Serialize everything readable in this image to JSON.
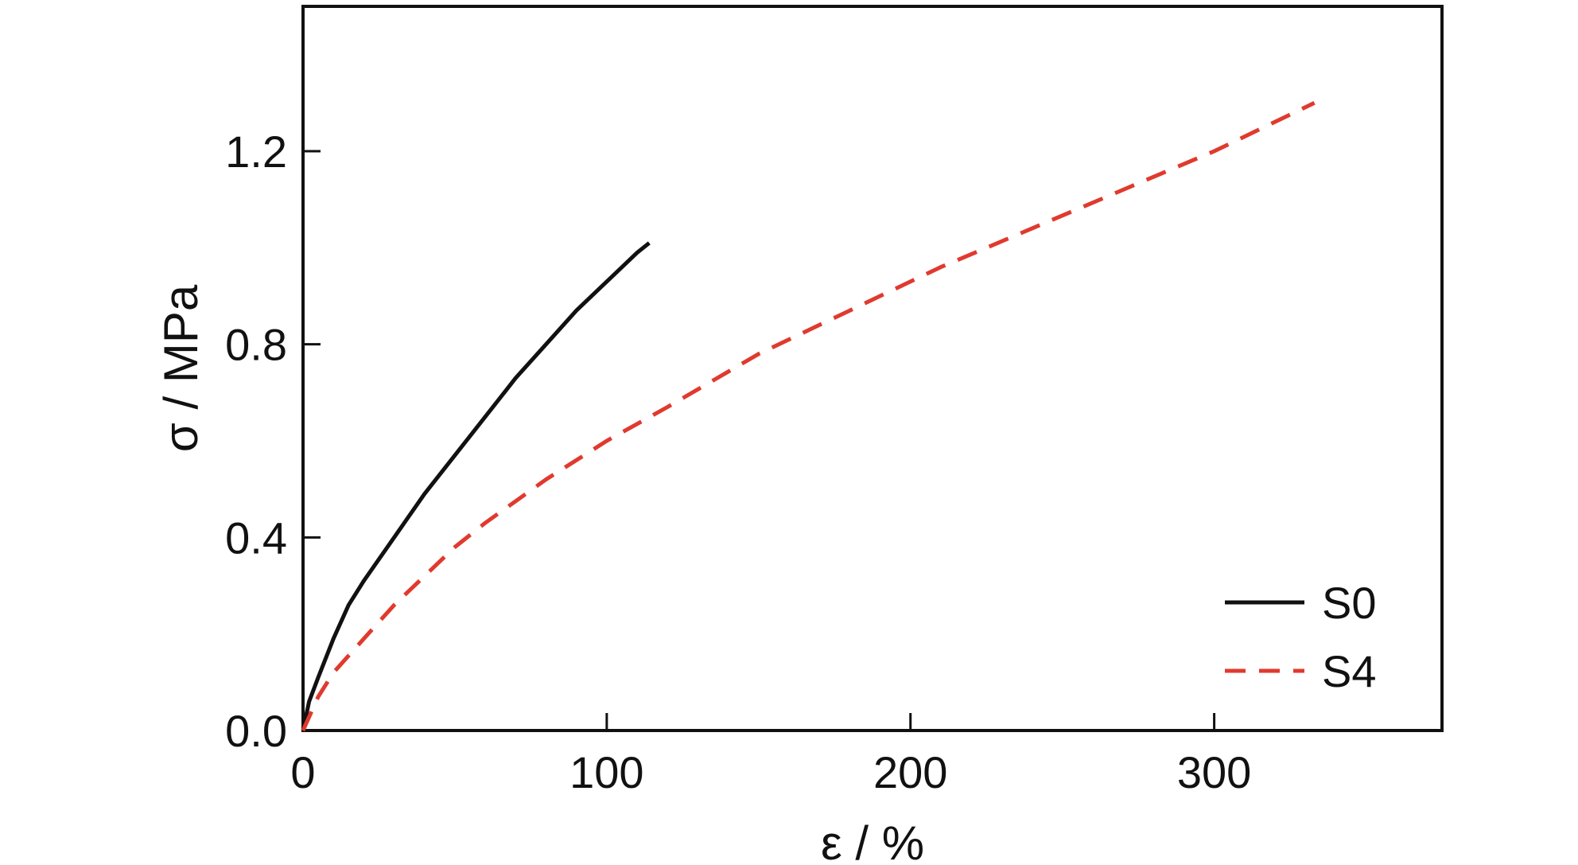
{
  "chart_data": {
    "type": "line",
    "xlabel": "ε / %",
    "ylabel": "σ / MPa",
    "xlim": [
      0,
      375
    ],
    "ylim": [
      0,
      1.5
    ],
    "xticks": [
      0,
      100,
      200,
      300
    ],
    "yticks": [
      0.0,
      0.4,
      0.8,
      1.2
    ],
    "xtick_labels": [
      "0",
      "100",
      "200",
      "300"
    ],
    "ytick_labels": [
      "0.0",
      "0.4",
      "0.8",
      "1.2"
    ],
    "grid": false,
    "legend_position": "bottom-right",
    "series": [
      {
        "name": "S0",
        "color": "#111111",
        "style": "solid",
        "x": [
          0,
          2,
          5,
          10,
          15,
          20,
          30,
          40,
          50,
          60,
          70,
          80,
          90,
          100,
          110,
          114
        ],
        "y": [
          0.0,
          0.06,
          0.11,
          0.19,
          0.26,
          0.31,
          0.4,
          0.49,
          0.57,
          0.65,
          0.73,
          0.8,
          0.87,
          0.93,
          0.99,
          1.01
        ]
      },
      {
        "name": "S4",
        "color": "#e03a2e",
        "style": "dashed",
        "x": [
          0,
          5,
          10,
          20,
          30,
          40,
          50,
          60,
          80,
          100,
          120,
          150,
          180,
          210,
          240,
          270,
          300,
          333
        ],
        "y": [
          0.0,
          0.07,
          0.12,
          0.19,
          0.26,
          0.32,
          0.38,
          0.43,
          0.52,
          0.6,
          0.67,
          0.78,
          0.87,
          0.96,
          1.04,
          1.12,
          1.2,
          1.3
        ]
      }
    ]
  }
}
